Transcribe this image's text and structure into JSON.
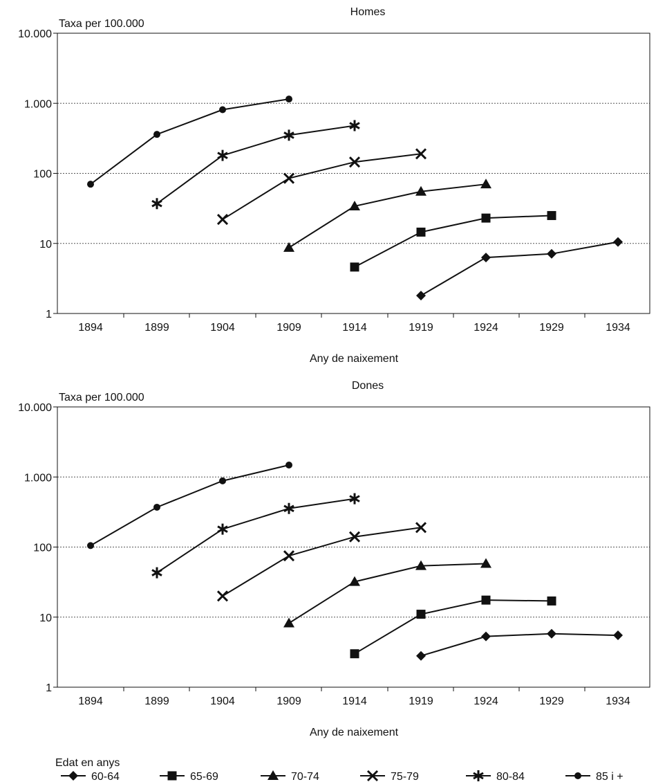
{
  "legend": {
    "title": "Edat en anys",
    "items": [
      {
        "label": "60-64",
        "marker": "diamond"
      },
      {
        "label": "65-69",
        "marker": "square"
      },
      {
        "label": "70-74",
        "marker": "triangle"
      },
      {
        "label": "75-79",
        "marker": "x"
      },
      {
        "label": "80-84",
        "marker": "asterisk"
      },
      {
        "label": "85 i +",
        "marker": "circle"
      }
    ]
  },
  "chart_data": [
    {
      "type": "line",
      "title": "Homes",
      "ylabel": "Taxa per 100.000",
      "xlabel": "Any de naixement",
      "yscale": "log",
      "ylim": [
        1,
        10000
      ],
      "yticks": [
        1,
        10,
        100,
        1000,
        10000
      ],
      "yticklabels": [
        "1",
        "10",
        "100",
        "1.000",
        "10.000"
      ],
      "x": [
        1894,
        1899,
        1904,
        1909,
        1914,
        1919,
        1924,
        1929,
        1934
      ],
      "grid": "horizontal dashed",
      "series": [
        {
          "name": "60-64",
          "marker": "diamond",
          "values": [
            null,
            null,
            null,
            null,
            null,
            1.8,
            6.3,
            7.1,
            10.5
          ]
        },
        {
          "name": "65-69",
          "marker": "square",
          "values": [
            null,
            null,
            null,
            null,
            4.6,
            14.5,
            23,
            25,
            null
          ]
        },
        {
          "name": "70-74",
          "marker": "triangle",
          "values": [
            null,
            null,
            null,
            8.7,
            34,
            55,
            70,
            null,
            null
          ]
        },
        {
          "name": "75-79",
          "marker": "x",
          "values": [
            null,
            null,
            22,
            85,
            145,
            190,
            null,
            null,
            null
          ]
        },
        {
          "name": "80-84",
          "marker": "asterisk",
          "values": [
            null,
            37,
            180,
            350,
            480,
            null,
            null,
            null,
            null
          ]
        },
        {
          "name": "85 i +",
          "marker": "circle",
          "values": [
            70,
            360,
            810,
            1150,
            null,
            null,
            null,
            null,
            null
          ]
        }
      ]
    },
    {
      "type": "line",
      "title": "Dones",
      "ylabel": "Taxa per 100.000",
      "xlabel": "Any de naixement",
      "yscale": "log",
      "ylim": [
        1,
        10000
      ],
      "yticks": [
        1,
        10,
        100,
        1000,
        10000
      ],
      "yticklabels": [
        "1",
        "10",
        "100",
        "1.000",
        "10.000"
      ],
      "x": [
        1894,
        1899,
        1904,
        1909,
        1914,
        1919,
        1924,
        1929,
        1934
      ],
      "grid": "horizontal dashed",
      "series": [
        {
          "name": "60-64",
          "marker": "diamond",
          "values": [
            null,
            null,
            null,
            null,
            null,
            2.8,
            5.3,
            5.8,
            5.5
          ]
        },
        {
          "name": "65-69",
          "marker": "square",
          "values": [
            null,
            null,
            null,
            null,
            3.0,
            11,
            17.5,
            17,
            null
          ]
        },
        {
          "name": "70-74",
          "marker": "triangle",
          "values": [
            null,
            null,
            null,
            8.2,
            32,
            54,
            58,
            null,
            null
          ]
        },
        {
          "name": "75-79",
          "marker": "x",
          "values": [
            null,
            null,
            20,
            75,
            140,
            190,
            null,
            null,
            null
          ]
        },
        {
          "name": "80-84",
          "marker": "asterisk",
          "values": [
            null,
            43,
            180,
            355,
            490,
            null,
            null,
            null,
            null
          ]
        },
        {
          "name": "85 i +",
          "marker": "circle",
          "values": [
            105,
            370,
            880,
            1480,
            null,
            null,
            null,
            null,
            null
          ]
        }
      ]
    }
  ]
}
